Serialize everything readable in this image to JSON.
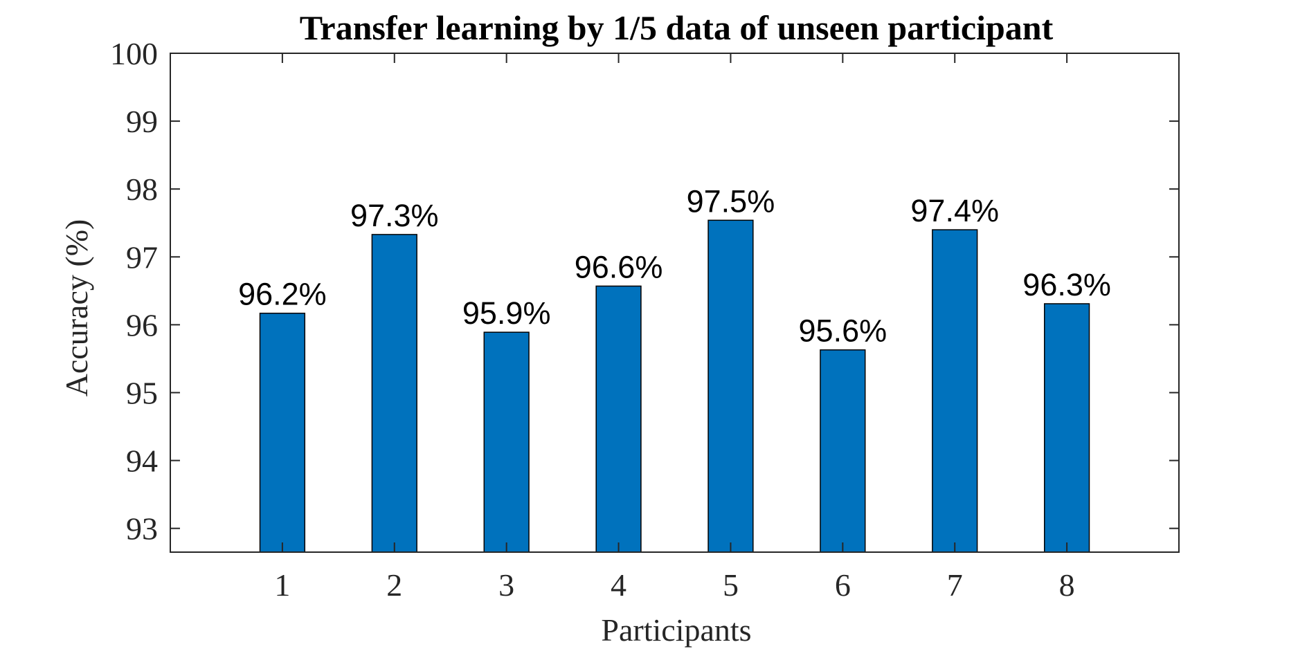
{
  "chart_data": {
    "type": "bar",
    "title": "Transfer learning by 1/5 data of unseen participant",
    "xlabel": "Participants",
    "ylabel": "Accuracy (%)",
    "categories": [
      "1",
      "2",
      "3",
      "4",
      "5",
      "6",
      "7",
      "8"
    ],
    "values": [
      96.17,
      97.33,
      95.89,
      96.57,
      97.54,
      95.63,
      97.4,
      96.31
    ],
    "data_labels": [
      "96.2%",
      "97.3%",
      "95.9%",
      "96.6%",
      "97.5%",
      "95.6%",
      "97.4%",
      "96.3%"
    ],
    "ylim": [
      92.65,
      100
    ],
    "xlim": [
      0,
      9
    ],
    "yticks": [
      93,
      94,
      95,
      96,
      97,
      98,
      99,
      100
    ],
    "ytick_labels": [
      "93",
      "94",
      "95",
      "96",
      "97",
      "98",
      "99",
      "100"
    ],
    "grid": false,
    "legend": "none",
    "bar_color": "#0072BD",
    "bar_edge_color": "#000000",
    "axis_color": "#262626"
  }
}
